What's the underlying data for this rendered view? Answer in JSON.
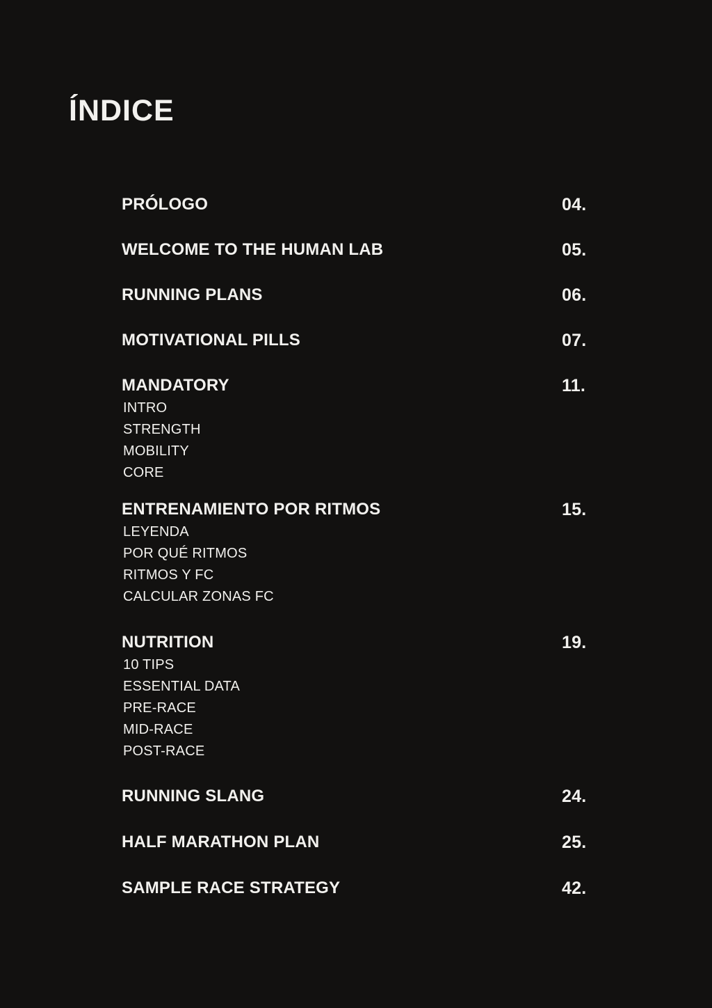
{
  "page": {
    "title": "ÍNDICE",
    "background_color": "#121110",
    "text_color": "#f2f1ee"
  },
  "toc": {
    "entries": [
      {
        "label": "PRÓLOGO",
        "page": "04."
      },
      {
        "label": "WELCOME TO THE HUMAN LAB",
        "page": "05."
      },
      {
        "label": "RUNNING PLANS",
        "page": "06."
      },
      {
        "label": "MOTIVATIONAL PILLS",
        "page": "07."
      },
      {
        "label": "MANDATORY",
        "page": "11.",
        "subitems": [
          "INTRO",
          "STRENGTH",
          "MOBILITY",
          "CORE"
        ]
      },
      {
        "label": "ENTRENAMIENTO POR RITMOS",
        "page": "15.",
        "subitems": [
          "LEYENDA",
          "POR QUÉ RITMOS",
          "RITMOS Y FC",
          "CALCULAR ZONAS FC"
        ]
      },
      {
        "label": "NUTRITION",
        "page": "19.",
        "subitems": [
          "10 TIPS",
          "ESSENTIAL DATA",
          "PRE-RACE",
          "MID-RACE",
          "POST-RACE"
        ]
      },
      {
        "label": "RUNNING SLANG",
        "page": "24."
      },
      {
        "label": "HALF MARATHON PLAN",
        "page": "25."
      },
      {
        "label": "SAMPLE RACE STRATEGY",
        "page": "42."
      }
    ]
  }
}
